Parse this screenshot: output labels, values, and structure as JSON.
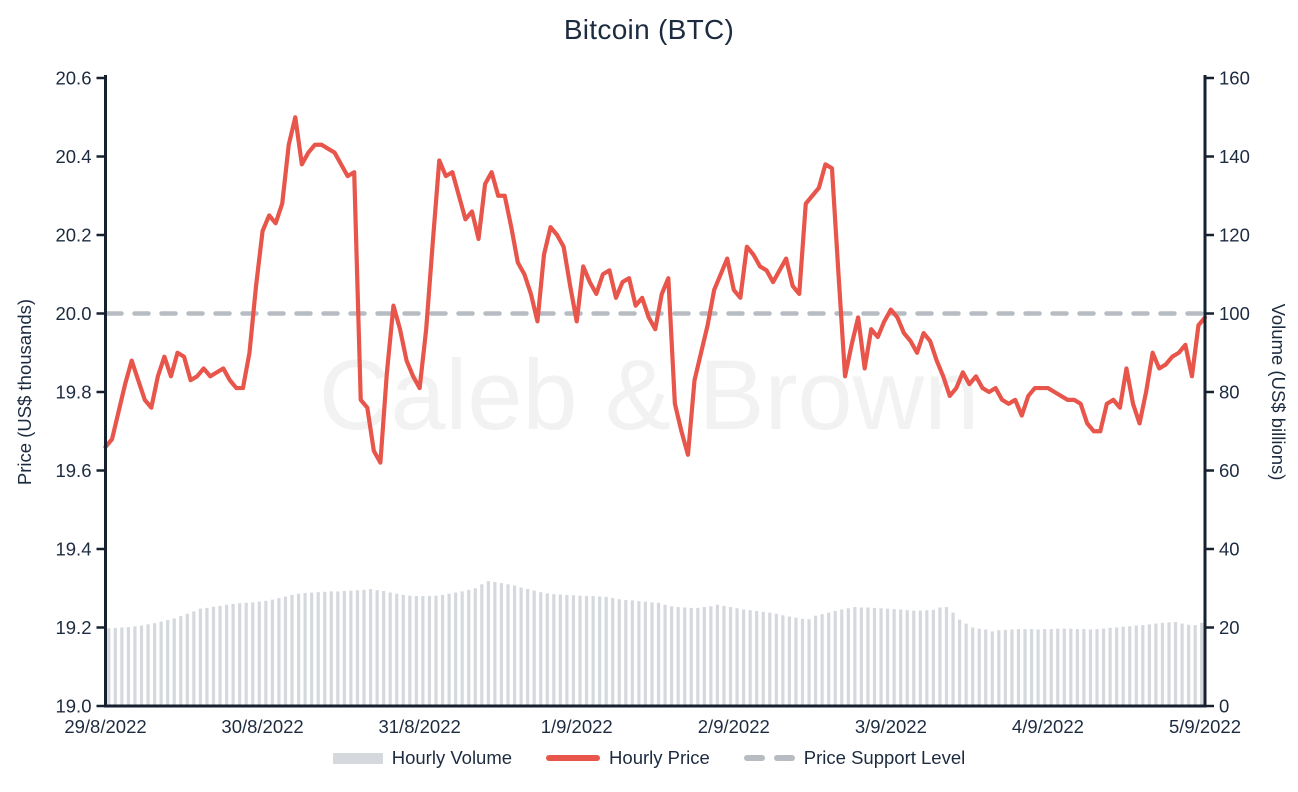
{
  "chart_data": {
    "type": "line+bar",
    "title": "Bitcoin (BTC)",
    "watermark": "Caleb & Brown",
    "x_axis": {
      "tick_labels": [
        "29/8/2022",
        "30/8/2022",
        "31/8/2022",
        "1/9/2022",
        "2/9/2022",
        "3/9/2022",
        "4/9/2022",
        "5/9/2022"
      ],
      "points_per_day": 24,
      "total_hours": 168
    },
    "left_axis": {
      "label": "Price (US$ thousands)",
      "range": [
        19.0,
        20.6
      ],
      "ticks": [
        19.0,
        19.2,
        19.4,
        19.6,
        19.8,
        20.0,
        20.2,
        20.4,
        20.6
      ],
      "tick_labels": [
        "19.0",
        "19.2",
        "19.4",
        "19.6",
        "19.8",
        "20.0",
        "20.2",
        "20.4",
        "20.6"
      ]
    },
    "right_axis": {
      "label": "Volume (US$ billions)",
      "range": [
        0,
        160
      ],
      "ticks": [
        0,
        20,
        40,
        60,
        80,
        100,
        120,
        140,
        160
      ],
      "tick_labels": [
        "0",
        "20",
        "40",
        "60",
        "80",
        "100",
        "120",
        "140",
        "160"
      ]
    },
    "support_level": {
      "price": 20.0,
      "label": "Price Support Level",
      "color": "#b7bcc2"
    },
    "series": [
      {
        "name": "Hourly Volume",
        "type": "bar",
        "axis": "right",
        "color": "#d5d9de",
        "values": [
          19.8,
          19.9,
          20.0,
          20.1,
          20.3,
          20.5,
          20.8,
          21.1,
          21.5,
          21.9,
          22.3,
          22.9,
          23.5,
          24.1,
          24.8,
          25.0,
          25.3,
          25.5,
          25.8,
          26.0,
          26.2,
          26.3,
          26.4,
          26.6,
          26.8,
          27.1,
          27.5,
          27.9,
          28.3,
          28.6,
          28.8,
          28.9,
          29.0,
          29.1,
          29.2,
          29.2,
          29.3,
          29.4,
          29.5,
          29.6,
          29.8,
          29.5,
          29.3,
          28.9,
          28.6,
          28.3,
          28.1,
          28.0,
          28.0,
          28.0,
          28.1,
          28.3,
          28.6,
          28.9,
          29.2,
          29.6,
          30.0,
          31.0,
          31.8,
          31.6,
          31.3,
          31.0,
          30.7,
          30.2,
          29.8,
          29.4,
          29.0,
          28.7,
          28.5,
          28.4,
          28.3,
          28.2,
          28.1,
          28.0,
          28.0,
          27.9,
          27.8,
          27.5,
          27.2,
          27.0,
          26.9,
          26.7,
          26.6,
          26.4,
          26.3,
          25.8,
          25.4,
          25.2,
          25.1,
          25.0,
          25.0,
          25.2,
          25.4,
          25.8,
          25.5,
          25.2,
          24.9,
          24.6,
          24.4,
          24.2,
          24.0,
          23.8,
          23.5,
          23.1,
          22.8,
          22.5,
          22.2,
          22.1,
          23.0,
          23.4,
          23.8,
          24.2,
          24.6,
          24.9,
          25.2,
          25.1,
          25.1,
          25.0,
          24.9,
          24.8,
          24.7,
          24.6,
          24.4,
          24.3,
          24.3,
          24.4,
          24.5,
          25.1,
          25.2,
          23.8,
          22.0,
          21.0,
          20.0,
          19.7,
          19.5,
          19.0,
          19.3,
          19.4,
          19.5,
          19.6,
          19.6,
          19.6,
          19.5,
          19.6,
          19.6,
          19.7,
          19.7,
          19.7,
          19.6,
          19.6,
          19.5,
          19.6,
          19.7,
          19.9,
          20.0,
          20.2,
          20.3,
          20.5,
          20.6,
          20.8,
          21.0,
          21.2,
          21.3,
          21.4,
          21.0,
          20.7,
          20.6,
          21.2
        ]
      },
      {
        "name": "Hourly Price",
        "type": "line",
        "axis": "left",
        "color": "#e8554a",
        "values": [
          19.66,
          19.68,
          19.75,
          19.82,
          19.88,
          19.83,
          19.78,
          19.76,
          19.84,
          19.89,
          19.84,
          19.9,
          19.89,
          19.83,
          19.84,
          19.86,
          19.84,
          19.85,
          19.86,
          19.83,
          19.81,
          19.81,
          19.9,
          20.07,
          20.21,
          20.25,
          20.23,
          20.28,
          20.43,
          20.5,
          20.38,
          20.41,
          20.43,
          20.43,
          20.42,
          20.41,
          20.38,
          20.35,
          20.36,
          19.78,
          19.76,
          19.65,
          19.62,
          19.85,
          20.02,
          19.96,
          19.88,
          19.84,
          19.81,
          19.96,
          20.18,
          20.39,
          20.35,
          20.36,
          20.3,
          20.24,
          20.26,
          20.19,
          20.33,
          20.36,
          20.3,
          20.3,
          20.22,
          20.13,
          20.1,
          20.05,
          19.98,
          20.15,
          20.22,
          20.2,
          20.17,
          20.07,
          19.98,
          20.12,
          20.08,
          20.05,
          20.1,
          20.11,
          20.04,
          20.08,
          20.09,
          20.02,
          20.04,
          19.99,
          19.96,
          20.05,
          20.09,
          19.77,
          19.7,
          19.64,
          19.83,
          19.9,
          19.97,
          20.06,
          20.1,
          20.14,
          20.06,
          20.04,
          20.17,
          20.15,
          20.12,
          20.11,
          20.08,
          20.11,
          20.14,
          20.07,
          20.05,
          20.28,
          20.3,
          20.32,
          20.38,
          20.37,
          20.1,
          19.84,
          19.92,
          19.99,
          19.86,
          19.96,
          19.94,
          19.98,
          20.01,
          19.99,
          19.95,
          19.93,
          19.9,
          19.95,
          19.93,
          19.88,
          19.84,
          19.79,
          19.81,
          19.85,
          19.82,
          19.84,
          19.81,
          19.8,
          19.81,
          19.78,
          19.77,
          19.78,
          19.74,
          19.79,
          19.81,
          19.81,
          19.81,
          19.8,
          19.79,
          19.78,
          19.78,
          19.77,
          19.72,
          19.7,
          19.7,
          19.77,
          19.78,
          19.76,
          19.86,
          19.77,
          19.72,
          19.8,
          19.9,
          19.86,
          19.87,
          19.89,
          19.9,
          19.92,
          19.84,
          19.97,
          19.99
        ]
      }
    ],
    "legend": [
      {
        "label": "Hourly Volume",
        "swatch": "bar",
        "color": "#d5d9de"
      },
      {
        "label": "Hourly Price",
        "swatch": "line",
        "color": "#e8554a"
      },
      {
        "label": "Price Support Level",
        "swatch": "dashes",
        "color": "#b7bcc2"
      }
    ],
    "grid": "off",
    "legend_position": "bottom-center"
  },
  "colors": {
    "background": "#ffffff",
    "text": "#1d2b40",
    "axis_line": "#16202f",
    "price_line": "#e8554a",
    "volume_bar": "#d5d9de",
    "support_dash": "#b7bcc2",
    "watermark": "#f2f2f3"
  }
}
